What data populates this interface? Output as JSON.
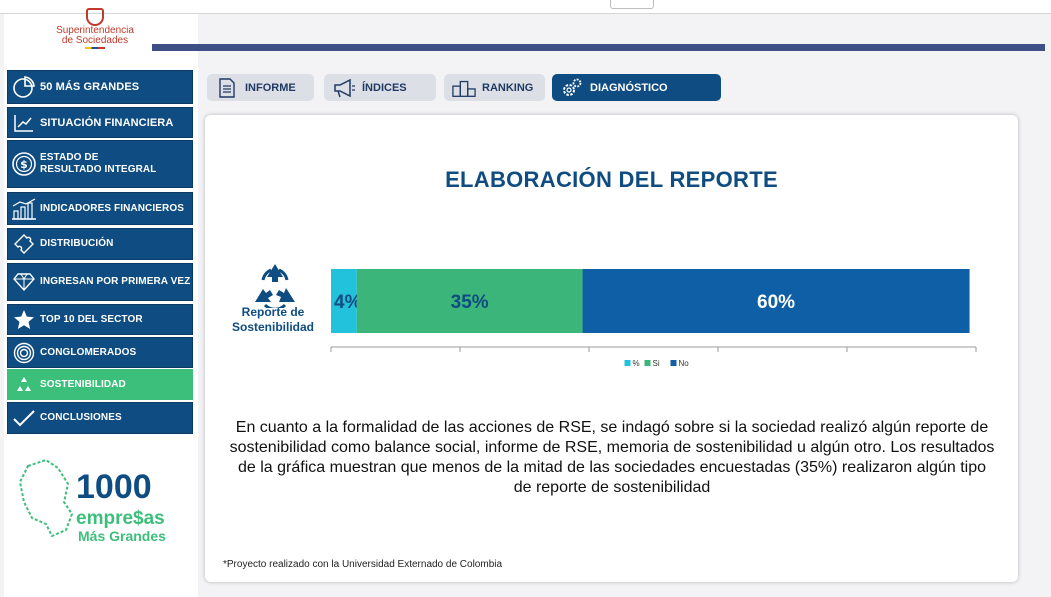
{
  "org": {
    "logo_line1": "Superintendencia",
    "logo_line2": "de Sociedades"
  },
  "nav": [
    {
      "label": "50  MÁS GRANDES",
      "icon": "pie-chart-icon"
    },
    {
      "label": "SITUACIÓN FINANCIERA",
      "icon": "trend-up-icon"
    },
    {
      "label": "ESTADO DE\nRESULTADO INTEGRAL",
      "icon": "dollar-coin-icon"
    },
    {
      "label": "INDICADORES FINANCIEROS",
      "icon": "bar-chart-icon"
    },
    {
      "label": "DISTRIBUCIÓN",
      "icon": "puzzle-icon"
    },
    {
      "label": "INGRESAN POR PRIMERA VEZ",
      "icon": "diamond-icon"
    },
    {
      "label": "TOP 10 DEL SECTOR",
      "icon": "star-icon"
    },
    {
      "label": "CONGLOMERADOS",
      "icon": "concentric-circles-icon"
    },
    {
      "label": "SOSTENIBILIDAD",
      "icon": "recycle-icon"
    },
    {
      "label": "CONCLUSIONES",
      "icon": "check-icon"
    }
  ],
  "brand": {
    "number": "1000",
    "line1": "empre$as",
    "line2": "Más Grandes"
  },
  "tabs": [
    {
      "label": "INFORME",
      "icon": "document-icon"
    },
    {
      "label": "ÍNDICES",
      "icon": "megaphone-icon"
    },
    {
      "label": "RANKING",
      "icon": "podium-icon"
    },
    {
      "label": "DIAGNÓSTICO",
      "icon": "gears-icon"
    }
  ],
  "card": {
    "title": "ELABORACIÓN DEL REPORTE",
    "row_label_1": "Reporte de",
    "row_label_2": "Sostenibilidad",
    "description": "En cuanto a la formalidad de las acciones de RSE, se indagó sobre si la sociedad realizó algún reporte de sostenibilidad como balance social, informe de RSE, memoria de sostenibilidad u algún otro. Los resultados de la gráfica muestran que menos de la mitad de las sociedades encuestadas (35%) realizaron algún tipo de reporte de sostenibilidad",
    "footnote": "*Proyecto realizado con la Universidad Externado de Colombia"
  },
  "colors": {
    "navy": "#0f4c81",
    "green": "#3dbf7c",
    "cyan": "#22c1dc",
    "bar_green": "#3bb57a",
    "bar_blue": "#0f5fa6"
  },
  "chart_data": {
    "type": "bar",
    "orientation": "horizontal-stacked",
    "categories": [
      "Reporte de Sostenibilidad"
    ],
    "series": [
      {
        "name": "%",
        "values": [
          4
        ],
        "label": "4%",
        "color": "#22c1dc"
      },
      {
        "name": "Si",
        "values": [
          35
        ],
        "label": "35%",
        "color": "#3bb57a"
      },
      {
        "name": "No",
        "values": [
          60
        ],
        "label": "60%",
        "color": "#0f5fa6"
      }
    ],
    "xlim": [
      0,
      100
    ],
    "legend": "bottom-center",
    "grid": false
  }
}
